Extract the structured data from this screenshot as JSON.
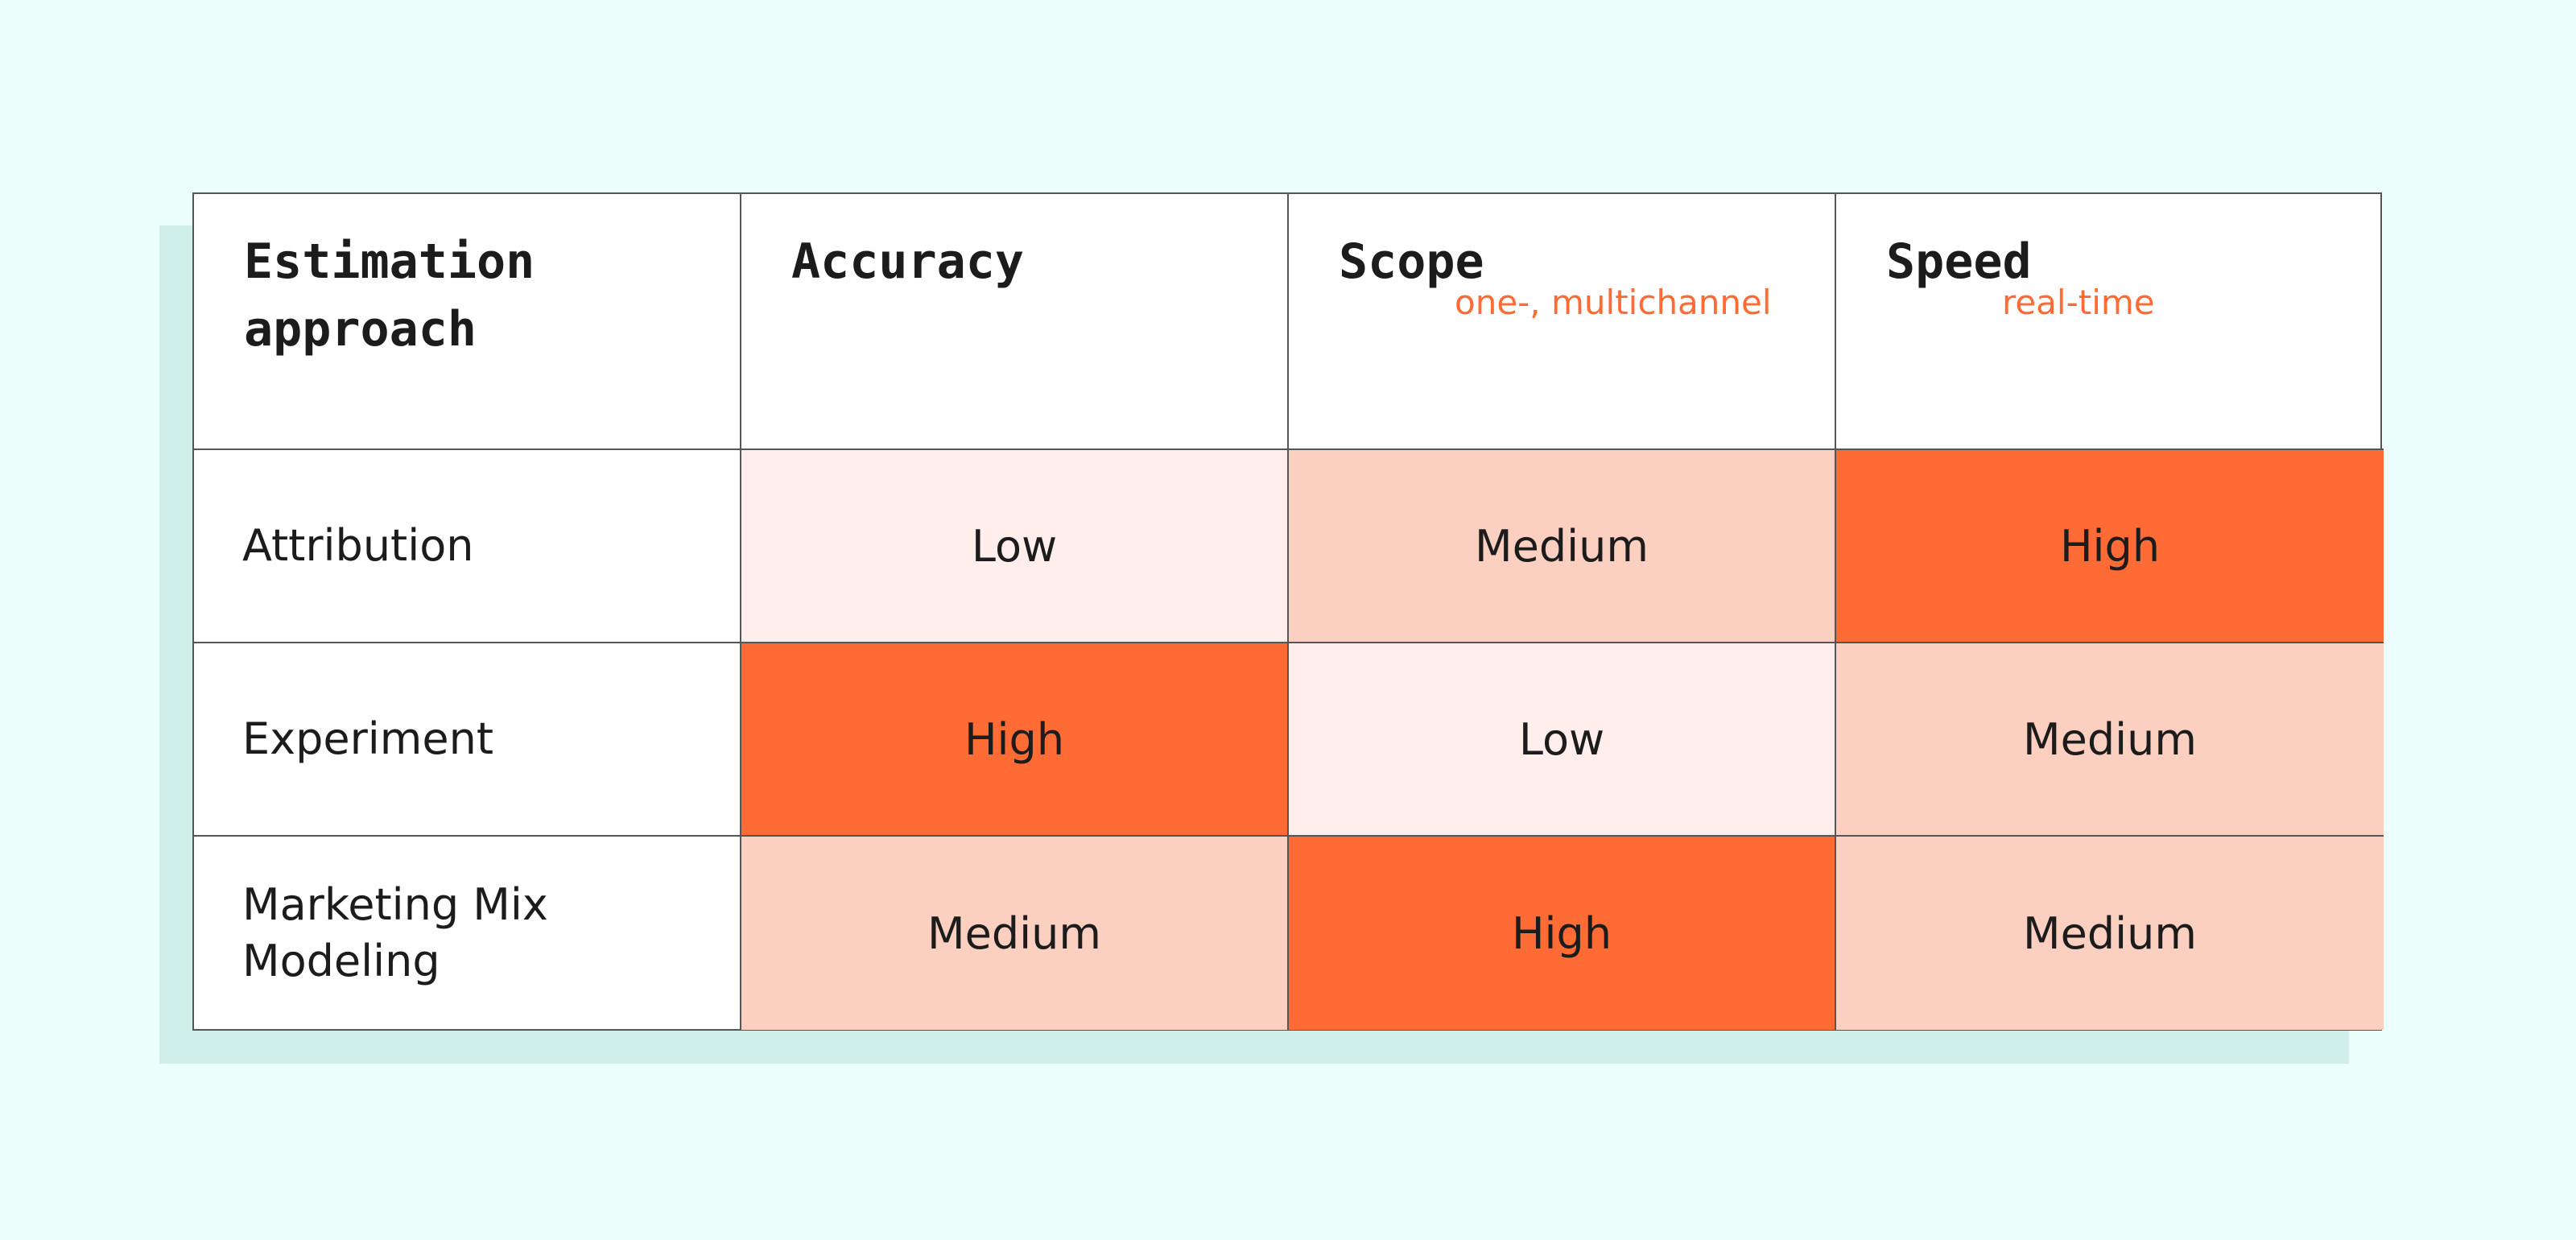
{
  "table": {
    "header": [
      {
        "text": "Estimation approach"
      },
      {
        "text": "Accuracy"
      },
      {
        "text": "Scope",
        "note": "one-, multichannel"
      },
      {
        "text": "Speed",
        "note": "real-time"
      }
    ],
    "rows": [
      {
        "label": "Attribution",
        "cells": [
          {
            "text": "Low",
            "color": "#ffeeeb"
          },
          {
            "text": "Medium",
            "color": "#fcd0c0"
          },
          {
            "text": "High",
            "color": "#ff6b35"
          }
        ]
      },
      {
        "label": "Experiment",
        "cells": [
          {
            "text": "High",
            "color": "#ff6b35"
          },
          {
            "text": "Low",
            "color": "#ffeeeb"
          },
          {
            "text": "Medium",
            "color": "#fcd0c0"
          }
        ]
      },
      {
        "label": "Marketing Mix Modeling",
        "cells": [
          {
            "text": "Medium",
            "color": "#fcd0c0"
          },
          {
            "text": "High",
            "color": "#ff6b35"
          },
          {
            "text": "Medium",
            "color": "#fcd0c0"
          }
        ]
      }
    ]
  }
}
